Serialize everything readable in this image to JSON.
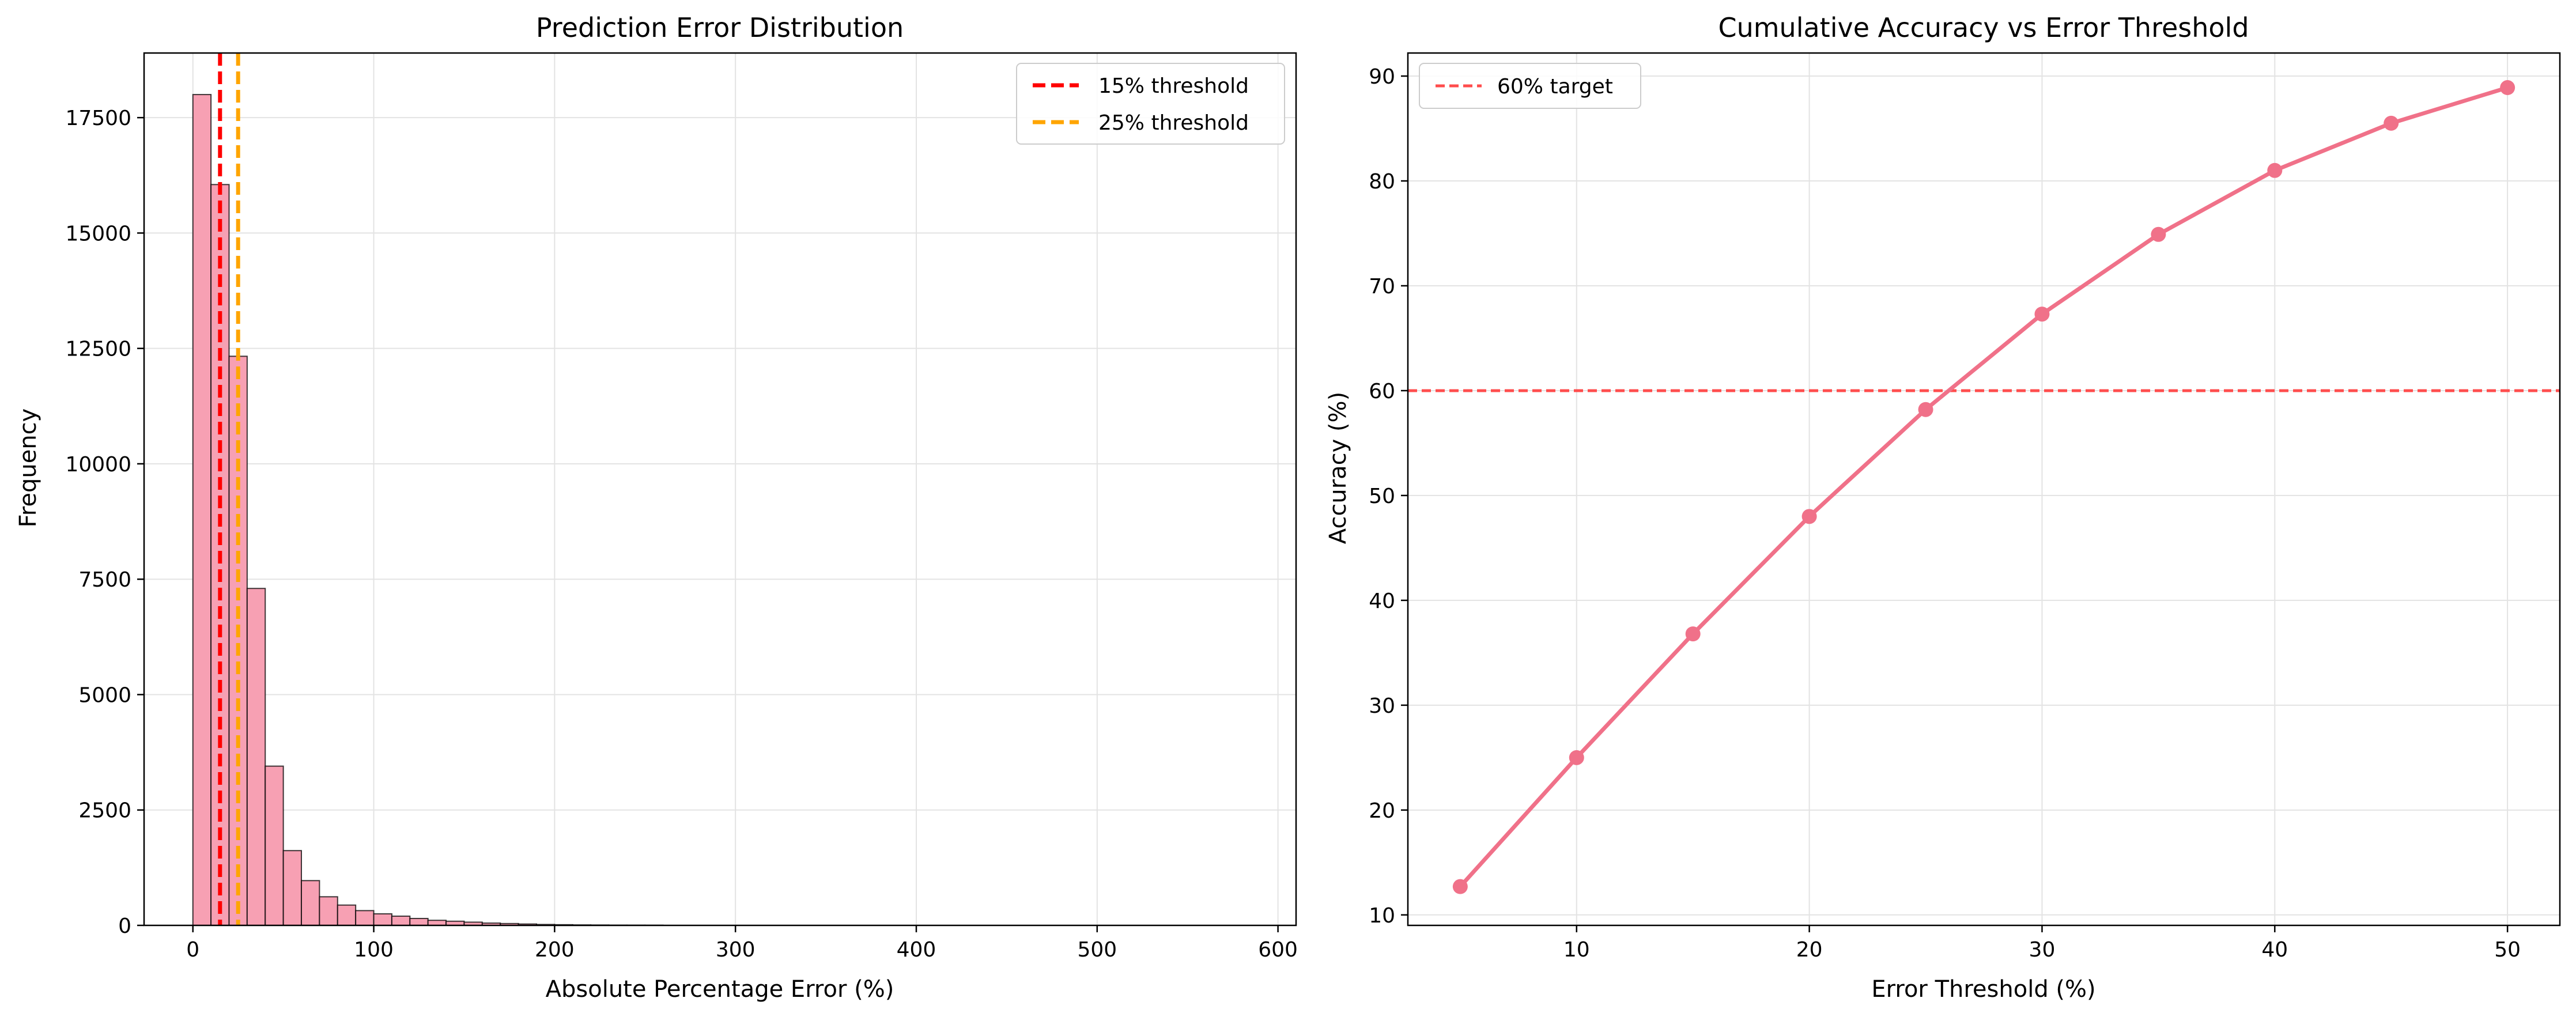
{
  "chart_data": [
    {
      "type": "bar",
      "title": "Prediction Error Distribution",
      "xlabel": "Absolute Percentage Error (%)",
      "ylabel": "Frequency",
      "xlim": [
        -27,
        610
      ],
      "ylim": [
        0,
        18900
      ],
      "xticks": [
        0,
        100,
        200,
        300,
        400,
        500,
        600
      ],
      "yticks": [
        0,
        2500,
        5000,
        7500,
        10000,
        12500,
        15000,
        17500
      ],
      "grid": true,
      "legend_position": "top-right",
      "bin_width": 10,
      "bin_starts": [
        0,
        10,
        20,
        30,
        40,
        50,
        60,
        70,
        80,
        90,
        100,
        110,
        120,
        130,
        140,
        150,
        160,
        170,
        180,
        190,
        200,
        210,
        220,
        230,
        240,
        250
      ],
      "values": [
        18000,
        16050,
        12330,
        7300,
        3450,
        1620,
        970,
        620,
        440,
        320,
        250,
        200,
        150,
        110,
        90,
        70,
        50,
        40,
        30,
        20,
        15,
        10,
        8,
        6,
        5,
        4
      ],
      "bar_color": "#f7a0b3",
      "reference_lines": [
        {
          "name": "15% threshold",
          "x": 15,
          "color": "#ff0000"
        },
        {
          "name": "25% threshold",
          "x": 25,
          "color": "#ffa500"
        }
      ]
    },
    {
      "type": "line",
      "title": "Cumulative Accuracy vs Error Threshold",
      "xlabel": "Error Threshold (%)",
      "ylabel": "Accuracy (%)",
      "xlim": [
        2.75,
        52.25
      ],
      "ylim": [
        9,
        92.2
      ],
      "xticks": [
        10,
        20,
        30,
        40,
        50
      ],
      "yticks": [
        10,
        20,
        30,
        40,
        50,
        60,
        70,
        80,
        90
      ],
      "grid": true,
      "legend_position": "top-left",
      "x": [
        5,
        10,
        15,
        20,
        25,
        30,
        35,
        40,
        45,
        50
      ],
      "y": [
        12.7,
        25.0,
        36.8,
        48.0,
        58.2,
        67.3,
        74.9,
        81.0,
        85.5,
        88.9
      ],
      "line_color": "#f07189",
      "reference_lines": [
        {
          "name": "60% target",
          "y": 60,
          "color": "#ff4d4d"
        }
      ]
    }
  ]
}
